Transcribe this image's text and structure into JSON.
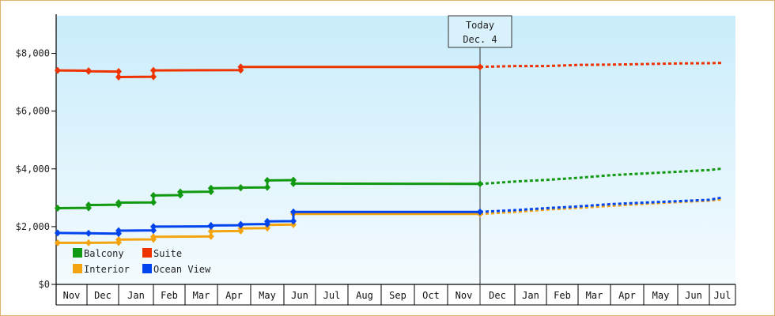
{
  "chart_data": {
    "type": "line",
    "title": "",
    "xlabel": "",
    "ylabel": "",
    "ylim": [
      0,
      9300
    ],
    "y_ticks": [
      0,
      2000,
      4000,
      6000,
      8000
    ],
    "y_tick_labels": [
      "$0",
      "$2,000",
      "$4,000",
      "$6,000",
      "$8,000"
    ],
    "x_tick_labels": [
      "Nov",
      "Dec",
      "Jan",
      "Feb",
      "Mar",
      "Apr",
      "May",
      "Jun",
      "Jul",
      "Aug",
      "Sep",
      "Oct",
      "Nov",
      "Dec",
      "Jan",
      "Feb",
      "Mar",
      "Apr",
      "May",
      "Jun",
      "Jul"
    ],
    "x_unit": "months from first Nov tick start",
    "grid": false,
    "legend_position": "bottom-left",
    "today_marker": {
      "line1": "Today",
      "line2": "Dec. 4",
      "x": 13.0
    },
    "series": [
      {
        "name": "Balcony",
        "color": "#119911",
        "values": [
          [
            0.05,
            2640
          ],
          [
            1.05,
            2650
          ],
          [
            1.05,
            2750
          ],
          [
            2.0,
            2760
          ],
          [
            2.0,
            2830
          ],
          [
            3.0,
            2840
          ],
          [
            3.0,
            3080
          ],
          [
            3.85,
            3090
          ],
          [
            3.85,
            3200
          ],
          [
            4.8,
            3210
          ],
          [
            4.8,
            3330
          ],
          [
            5.7,
            3340
          ],
          [
            5.7,
            3350
          ],
          [
            6.5,
            3360
          ],
          [
            6.5,
            3600
          ],
          [
            7.3,
            3610
          ],
          [
            7.3,
            3490
          ],
          [
            13.0,
            3480
          ]
        ],
        "projection": [
          [
            13.0,
            3480
          ],
          [
            14.0,
            3560
          ],
          [
            15.0,
            3620
          ],
          [
            16.0,
            3690
          ],
          [
            17.0,
            3780
          ],
          [
            18.0,
            3840
          ],
          [
            19.0,
            3900
          ],
          [
            20.0,
            3960
          ],
          [
            20.5,
            4010
          ]
        ]
      },
      {
        "name": "Suite",
        "color": "#ee3300",
        "values": [
          [
            0.05,
            7410
          ],
          [
            1.05,
            7400
          ],
          [
            1.05,
            7380
          ],
          [
            2.0,
            7370
          ],
          [
            2.0,
            7180
          ],
          [
            3.0,
            7190
          ],
          [
            3.0,
            7410
          ],
          [
            5.7,
            7420
          ],
          [
            5.7,
            7530
          ],
          [
            13.0,
            7530
          ]
        ],
        "projection": [
          [
            13.0,
            7530
          ],
          [
            14.0,
            7560
          ],
          [
            15.0,
            7560
          ],
          [
            16.0,
            7600
          ],
          [
            17.0,
            7610
          ],
          [
            18.0,
            7630
          ],
          [
            19.0,
            7650
          ],
          [
            20.0,
            7660
          ],
          [
            20.5,
            7670
          ]
        ]
      },
      {
        "name": "Interior",
        "color": "#f4a310",
        "values": [
          [
            0.05,
            1440
          ],
          [
            1.05,
            1440
          ],
          [
            2.0,
            1450
          ],
          [
            2.0,
            1550
          ],
          [
            3.0,
            1560
          ],
          [
            3.0,
            1650
          ],
          [
            4.8,
            1660
          ],
          [
            4.8,
            1840
          ],
          [
            5.7,
            1850
          ],
          [
            5.7,
            1940
          ],
          [
            6.5,
            1950
          ],
          [
            6.5,
            2060
          ],
          [
            7.3,
            2070
          ],
          [
            7.3,
            2440
          ],
          [
            13.0,
            2440
          ]
        ],
        "projection": [
          [
            13.0,
            2440
          ],
          [
            14.0,
            2510
          ],
          [
            15.0,
            2590
          ],
          [
            16.0,
            2650
          ],
          [
            17.0,
            2720
          ],
          [
            18.0,
            2790
          ],
          [
            19.0,
            2850
          ],
          [
            20.0,
            2900
          ],
          [
            20.5,
            2950
          ]
        ]
      },
      {
        "name": "Ocean View",
        "color": "#0044ee",
        "values": [
          [
            0.05,
            1780
          ],
          [
            1.05,
            1770
          ],
          [
            2.0,
            1760
          ],
          [
            2.0,
            1860
          ],
          [
            3.0,
            1870
          ],
          [
            3.0,
            2000
          ],
          [
            4.8,
            2010
          ],
          [
            4.8,
            2040
          ],
          [
            5.7,
            2050
          ],
          [
            5.7,
            2080
          ],
          [
            6.5,
            2090
          ],
          [
            6.5,
            2180
          ],
          [
            7.3,
            2190
          ],
          [
            7.3,
            2510
          ],
          [
            13.0,
            2510
          ]
        ],
        "projection": [
          [
            13.0,
            2510
          ],
          [
            14.0,
            2570
          ],
          [
            15.0,
            2640
          ],
          [
            16.0,
            2700
          ],
          [
            17.0,
            2780
          ],
          [
            18.0,
            2830
          ],
          [
            19.0,
            2880
          ],
          [
            20.0,
            2930
          ],
          [
            20.5,
            3010
          ]
        ]
      }
    ],
    "legend": [
      {
        "name": "Balcony",
        "color": "#119911"
      },
      {
        "name": "Suite",
        "color": "#ee3300"
      },
      {
        "name": "Interior",
        "color": "#f4a310"
      },
      {
        "name": "Ocean View",
        "color": "#0044ee"
      }
    ]
  }
}
